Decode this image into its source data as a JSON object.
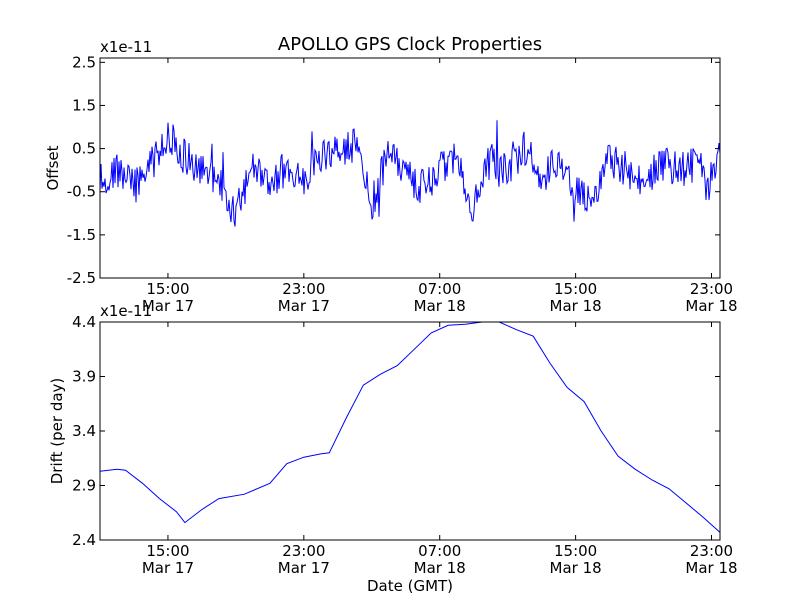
{
  "figure": {
    "title": "APOLLO GPS Clock Properties",
    "xlabel": "Date (GMT)"
  },
  "chart_data": [
    {
      "type": "line",
      "title": "APOLLO GPS Clock Properties",
      "ylabel": "Offset",
      "yscale_label": "x1e-11",
      "ylim": [
        -2.5,
        2.6
      ],
      "yticks": [
        "2.5",
        "1.5",
        "0.5",
        "-0.5",
        "-1.5",
        "-2.5"
      ],
      "ytick_values": [
        2.5,
        1.5,
        0.5,
        -0.5,
        -1.5,
        -2.5
      ],
      "xlim": [
        "Mar 17 11:00",
        "Mar 18 23:30"
      ],
      "xticks": [
        {
          "time": "15:00",
          "date": "Mar 17"
        },
        {
          "time": "23:00",
          "date": "Mar 17"
        },
        {
          "time": "07:00",
          "date": "Mar 18"
        },
        {
          "time": "15:00",
          "date": "Mar 18"
        },
        {
          "time": "23:00",
          "date": "Mar 18"
        }
      ],
      "grid": false,
      "color": "#0000ff",
      "series": [
        {
          "x": [
            "Mar 17 11:00",
            "Mar 17 12:00",
            "Mar 17 13:00",
            "Mar 17 14:00",
            "Mar 17 15:00",
            "Mar 17 16:00",
            "Mar 17 17:00",
            "Mar 17 18:00",
            "Mar 17 19:00",
            "Mar 17 20:00",
            "Mar 17 21:00",
            "Mar 17 22:00",
            "Mar 17 23:00",
            "Mar 18 00:00",
            "Mar 18 01:00",
            "Mar 18 02:00",
            "Mar 18 03:00",
            "Mar 18 04:00",
            "Mar 18 05:00",
            "Mar 18 06:00",
            "Mar 18 07:00",
            "Mar 18 08:00",
            "Mar 18 09:00",
            "Mar 18 10:00",
            "Mar 18 11:00",
            "Mar 18 12:00",
            "Mar 18 13:00",
            "Mar 18 14:00",
            "Mar 18 15:00",
            "Mar 18 16:00",
            "Mar 18 17:00",
            "Mar 18 18:00",
            "Mar 18 19:00",
            "Mar 18 20:00",
            "Mar 18 21:00",
            "Mar 18 22:00",
            "Mar 18 23:00",
            "Mar 18 23:30"
          ],
          "values": [
            -0.2,
            0.0,
            -0.4,
            0.1,
            0.8,
            0.3,
            0.0,
            -0.3,
            -1.0,
            0.0,
            -0.4,
            0.1,
            -0.2,
            0.3,
            0.4,
            0.6,
            -0.8,
            0.5,
            -0.1,
            -0.4,
            0.0,
            0.4,
            -0.9,
            0.3,
            0.0,
            0.5,
            -0.2,
            0.2,
            -0.5,
            -0.7,
            0.3,
            0.0,
            -0.3,
            0.2,
            0.0,
            0.1,
            -0.2,
            0.3
          ]
        }
      ]
    },
    {
      "type": "line",
      "ylabel": "Drift (per day)",
      "yscale_label": "x1e-11",
      "ylim": [
        2.4,
        4.4
      ],
      "yticks": [
        "4.4",
        "3.9",
        "3.4",
        "2.9",
        "2.4"
      ],
      "ytick_values": [
        4.4,
        3.9,
        3.4,
        2.9,
        2.4
      ],
      "xlim": [
        "Mar 17 11:00",
        "Mar 18 23:30"
      ],
      "xticks": [
        {
          "time": "15:00",
          "date": "Mar 17"
        },
        {
          "time": "23:00",
          "date": "Mar 17"
        },
        {
          "time": "07:00",
          "date": "Mar 18"
        },
        {
          "time": "15:00",
          "date": "Mar 18"
        },
        {
          "time": "23:00",
          "date": "Mar 18"
        }
      ],
      "xlabel": "Date (GMT)",
      "grid": false,
      "color": "#0000ff",
      "series": [
        {
          "x": [
            "Mar 17 11:00",
            "Mar 17 12:00",
            "Mar 17 12:30",
            "Mar 17 13:30",
            "Mar 17 14:30",
            "Mar 17 15:30",
            "Mar 17 16:00",
            "Mar 17 17:00",
            "Mar 17 18:00",
            "Mar 17 19:30",
            "Mar 17 21:00",
            "Mar 17 22:00",
            "Mar 17 23:00",
            "Mar 18 00:00",
            "Mar 18 00:30",
            "Mar 18 01:30",
            "Mar 18 02:30",
            "Mar 18 03:30",
            "Mar 18 04:30",
            "Mar 18 05:30",
            "Mar 18 06:30",
            "Mar 18 07:30",
            "Mar 18 08:30",
            "Mar 18 09:30",
            "Mar 18 10:30",
            "Mar 18 11:30",
            "Mar 18 12:30",
            "Mar 18 13:30",
            "Mar 18 14:30",
            "Mar 18 15:30",
            "Mar 18 16:30",
            "Mar 18 17:30",
            "Mar 18 18:30",
            "Mar 18 19:30",
            "Mar 18 20:30",
            "Mar 18 21:30",
            "Mar 18 22:30",
            "Mar 18 23:30"
          ],
          "values": [
            3.03,
            3.05,
            3.04,
            2.92,
            2.78,
            2.66,
            2.56,
            2.68,
            2.78,
            2.82,
            2.92,
            3.1,
            3.16,
            3.19,
            3.2,
            3.52,
            3.82,
            3.92,
            4.0,
            4.15,
            4.3,
            4.37,
            4.38,
            4.4,
            4.4,
            4.33,
            4.27,
            4.02,
            3.8,
            3.67,
            3.4,
            3.17,
            3.05,
            2.95,
            2.87,
            2.74,
            2.61,
            2.47
          ]
        }
      ]
    }
  ]
}
